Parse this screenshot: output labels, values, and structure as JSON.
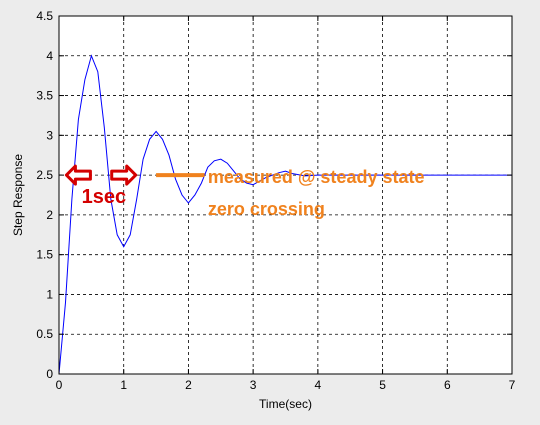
{
  "chart_data": {
    "type": "line",
    "xlabel": "Time(sec)",
    "ylabel": "Step Response",
    "xlim": [
      0,
      7
    ],
    "ylim": [
      0,
      4.5
    ],
    "xticks": [
      0,
      1,
      2,
      3,
      4,
      5,
      6,
      7
    ],
    "xtick_labels": [
      "0",
      "1",
      "2",
      "3",
      "4",
      "5",
      "6",
      "7"
    ],
    "yticks": [
      0,
      0.5,
      1,
      1.5,
      2,
      2.5,
      3,
      3.5,
      4,
      4.5
    ],
    "ytick_labels": [
      "0",
      "0.5",
      "1",
      "1.5",
      "2",
      "2.5",
      "3",
      "3.5",
      "4",
      "4.5"
    ],
    "grid": true,
    "series": [
      {
        "color": "#0000ff",
        "x": [
          0,
          0.1,
          0.2,
          0.3,
          0.4,
          0.5,
          0.6,
          0.7,
          0.8,
          0.9,
          1.0,
          1.1,
          1.2,
          1.3,
          1.4,
          1.5,
          1.6,
          1.7,
          1.8,
          1.9,
          2.0,
          2.1,
          2.2,
          2.3,
          2.4,
          2.5,
          2.6,
          2.7,
          2.8,
          2.9,
          3.0,
          3.2,
          3.4,
          3.5,
          3.6,
          3.8,
          4.0,
          4.5,
          5.0,
          5.5,
          6.0,
          6.5,
          7.0
        ],
        "y": [
          0,
          0.9,
          2.2,
          3.2,
          3.7,
          4.0,
          3.8,
          3.1,
          2.2,
          1.75,
          1.6,
          1.75,
          2.2,
          2.7,
          2.95,
          3.05,
          2.95,
          2.75,
          2.45,
          2.25,
          2.15,
          2.25,
          2.4,
          2.6,
          2.68,
          2.7,
          2.65,
          2.55,
          2.45,
          2.4,
          2.38,
          2.47,
          2.53,
          2.55,
          2.52,
          2.49,
          2.5,
          2.5,
          2.5,
          2.5,
          2.5,
          2.5,
          2.5
        ]
      }
    ],
    "annotations": {
      "label_1sec": "1sec",
      "label_measured": "measured @ steady state",
      "label_zero": "zero crossing",
      "arrow_y": 2.5,
      "left_arrow_x": 0.3,
      "right_arrow_x": 1.0,
      "guide_x_start": 1.5,
      "guide_x_end": 2.25,
      "color_red": "#d40000",
      "color_orange": "#f0821e"
    }
  }
}
